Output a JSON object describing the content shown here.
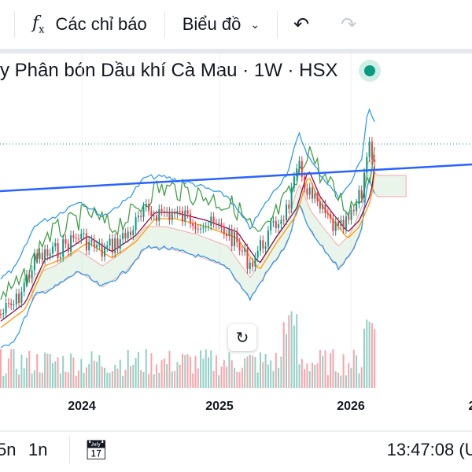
{
  "toolbar": {
    "indicators_label": "Các chỉ báo",
    "chart_type_label": "Biểu đồ",
    "icons": [
      "fx-icon",
      "chevron-down-icon",
      "undo-icon",
      "redo-icon"
    ]
  },
  "legend": {
    "title": "y Phân bón Dầu khí Cà Mau · 1W · HSX",
    "status_color": "#089981"
  },
  "time_axis": [
    "2024",
    "2025",
    "2026",
    "2"
  ],
  "bottom": {
    "ranges": [
      "5n",
      "1n"
    ],
    "time": "13:47:08 (UT"
  },
  "colors": {
    "up": "#089981",
    "down": "#f23645",
    "trendline": "#2962ff"
  }
}
